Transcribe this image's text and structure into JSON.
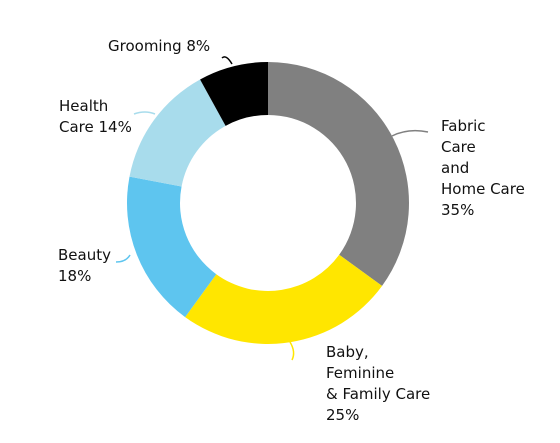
{
  "chart_data": {
    "type": "pie",
    "donut": true,
    "categories": [
      "Fabric Care and Home Care",
      "Baby, Feminine & Family Care",
      "Beauty",
      "Health Care",
      "Grooming"
    ],
    "values": [
      35,
      25,
      18,
      14,
      8
    ],
    "colors": [
      "#808080",
      "#ffe600",
      "#5ec5ef",
      "#a8dcec",
      "#000000"
    ],
    "labels": {
      "fabric": [
        "Fabric",
        "Care",
        "and",
        "Home Care",
        "35%"
      ],
      "baby": [
        "Baby,",
        "Feminine",
        "& Family Care",
        "25%"
      ],
      "beauty": [
        "Beauty",
        "18%"
      ],
      "health": [
        "Health",
        "Care 14%"
      ],
      "grooming": [
        "Grooming 8%"
      ]
    }
  }
}
